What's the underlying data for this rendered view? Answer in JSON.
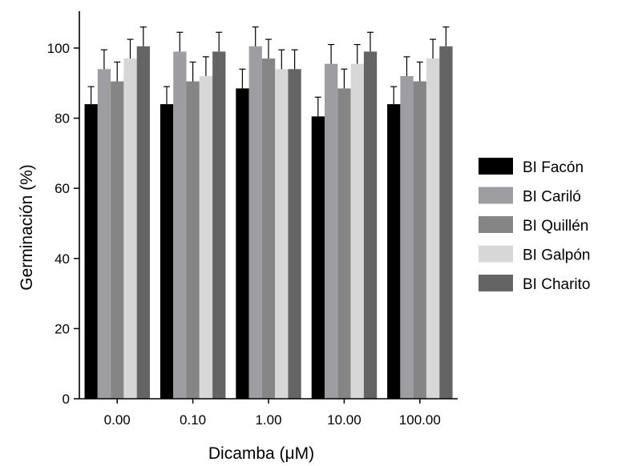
{
  "chart_data": {
    "type": "bar",
    "title": "",
    "xlabel": "Dicamba (μM)",
    "ylabel": "Germinación (%)",
    "categories": [
      "0.00",
      "0.10",
      "1.00",
      "10.00",
      "100.00"
    ],
    "y_ticks": [
      "0",
      "20",
      "40",
      "60",
      "80",
      "100"
    ],
    "ylim": [
      0,
      110
    ],
    "grid": false,
    "legend_position": "right",
    "series": [
      {
        "name": "BI Facón",
        "color": "#000000",
        "values": [
          84,
          84,
          88.5,
          80.5,
          84
        ],
        "errors": [
          5,
          5,
          5.5,
          5.5,
          5
        ]
      },
      {
        "name": "BI Cariló",
        "color": "#9e9ea2",
        "values": [
          94,
          99,
          100.5,
          95.5,
          92
        ],
        "errors": [
          5.5,
          5.5,
          5.5,
          5.5,
          5.5
        ]
      },
      {
        "name": "BI Quillén",
        "color": "#858585",
        "values": [
          90.5,
          90.5,
          97,
          88.5,
          90.5
        ],
        "errors": [
          5.5,
          5.5,
          5.5,
          5.5,
          5.5
        ]
      },
      {
        "name": "BI Galpón",
        "color": "#d7d7d7",
        "values": [
          97,
          92,
          94,
          95.5,
          97
        ],
        "errors": [
          5.5,
          5.5,
          5.5,
          5.5,
          5.5
        ]
      },
      {
        "name": "BI Charito",
        "color": "#646464",
        "values": [
          100.5,
          99,
          94,
          99,
          100.5
        ],
        "errors": [
          5.5,
          5.5,
          5.5,
          5.5,
          5.5
        ]
      }
    ]
  }
}
